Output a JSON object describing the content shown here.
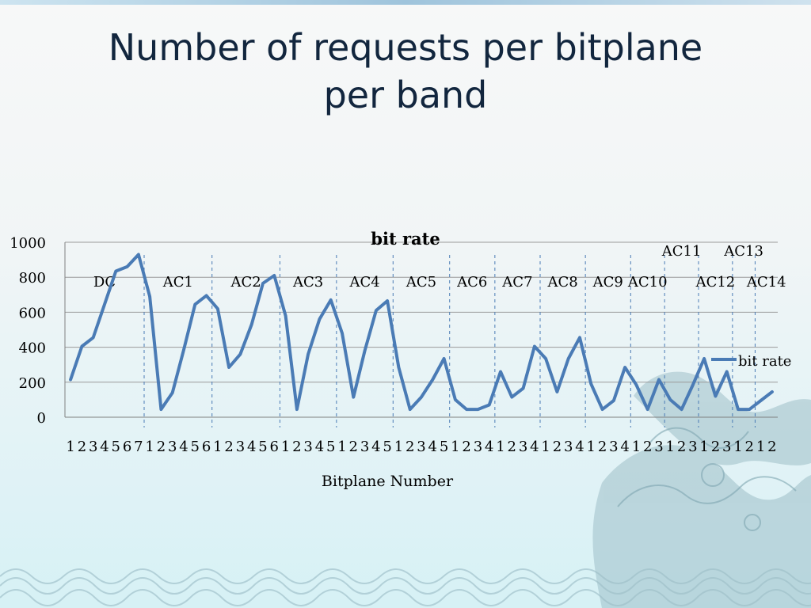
{
  "slide": {
    "title_line1": "Number of requests per bitplane",
    "title_line2": "per band"
  },
  "chart_data": {
    "type": "line",
    "title": "bit rate",
    "xlabel": "Bitplane Number",
    "ylabel": "",
    "ylim": [
      0,
      1000
    ],
    "yticks": [
      0,
      200,
      400,
      600,
      800,
      1000
    ],
    "grid": true,
    "legend": "right",
    "line_color": "#4a7bb5",
    "categories": [
      "1",
      "2",
      "3",
      "4",
      "5",
      "6",
      "7",
      "1",
      "2",
      "3",
      "4",
      "5",
      "6",
      "1",
      "2",
      "3",
      "4",
      "5",
      "6",
      "1",
      "2",
      "3",
      "4",
      "5",
      "1",
      "2",
      "3",
      "4",
      "5",
      "1",
      "2",
      "3",
      "4",
      "5",
      "1",
      "2",
      "3",
      "4",
      "1",
      "2",
      "3",
      "4",
      "1",
      "2",
      "3",
      "4",
      "1",
      "2",
      "3",
      "4",
      "1",
      "2",
      "3",
      "1",
      "2",
      "3",
      "1",
      "2",
      "3",
      "1",
      "2",
      "1",
      "2"
    ],
    "series": [
      {
        "name": "bit rate",
        "values": [
          215,
          405,
          455,
          645,
          835,
          860,
          930,
          690,
          45,
          140,
          385,
          645,
          695,
          620,
          285,
          360,
          530,
          765,
          810,
          580,
          45,
          360,
          560,
          670,
          480,
          115,
          380,
          610,
          665,
          285,
          45,
          115,
          215,
          335,
          100,
          45,
          45,
          70,
          260,
          115,
          165,
          405,
          335,
          145,
          335,
          455,
          190,
          45,
          95,
          285,
          185,
          45,
          215,
          100,
          45,
          185,
          335,
          120,
          260,
          45,
          45,
          95,
          145
        ]
      }
    ],
    "band_separators_after_index": [
      6,
      12,
      18,
      23,
      28,
      33,
      37,
      41,
      45,
      49,
      52,
      55,
      58,
      60
    ],
    "bands": [
      "DC",
      "AC1",
      "AC2",
      "AC3",
      "AC4",
      "AC5",
      "AC6",
      "AC7",
      "AC8",
      "AC9",
      "AC10",
      "AC11",
      "AC12",
      "AC13",
      "AC14"
    ]
  }
}
